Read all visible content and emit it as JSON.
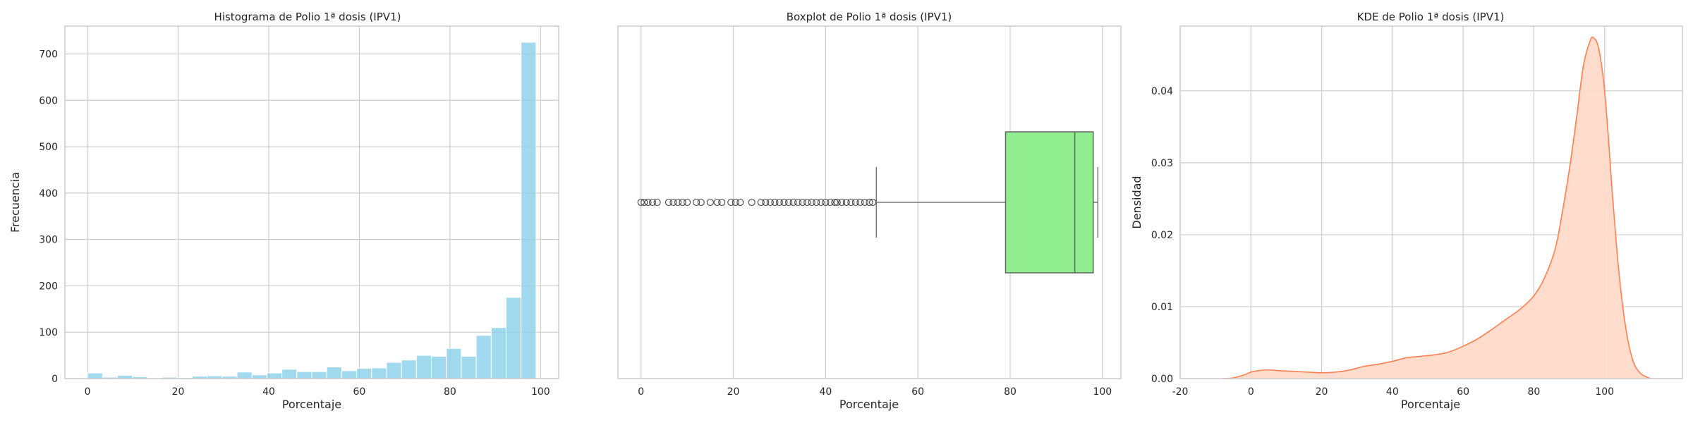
{
  "chart_data": [
    {
      "type": "bar",
      "subtype": "histogram",
      "title": "Histograma de Polio 1ª dosis (IPV1)",
      "xlabel": "Porcentaje",
      "ylabel": "Frecuencia",
      "xlim": [
        -5,
        104
      ],
      "ylim": [
        0,
        760
      ],
      "xticks": [
        0,
        20,
        40,
        60,
        80,
        100
      ],
      "yticks": [
        0,
        100,
        200,
        300,
        400,
        500,
        600,
        700
      ],
      "bin_width": 3.3,
      "bin_start": 0,
      "values": [
        12,
        3,
        7,
        4,
        1,
        3,
        2,
        5,
        6,
        5,
        14,
        8,
        12,
        20,
        15,
        15,
        25,
        17,
        22,
        23,
        35,
        40,
        50,
        48,
        65,
        48,
        93,
        110,
        175,
        725
      ],
      "color": "#87ceeb",
      "grid": true
    },
    {
      "type": "boxplot",
      "title": "Boxplot de Polio 1ª dosis (IPV1)",
      "xlabel": "Porcentaje",
      "xlim": [
        -5,
        104
      ],
      "xticks": [
        0,
        20,
        40,
        60,
        80,
        100
      ],
      "stats": {
        "whisker_low": 51,
        "q1": 79,
        "median": 94,
        "q3": 98,
        "whisker_high": 99
      },
      "outliers": [
        0,
        0.7,
        1.5,
        2.5,
        3.5,
        6,
        7,
        8,
        9,
        10,
        12,
        13,
        15,
        16.5,
        17.5,
        19.5,
        20.5,
        21.5,
        24,
        26,
        27,
        28,
        29,
        30,
        31,
        32,
        33,
        34,
        35,
        36,
        37,
        38,
        39,
        40,
        41,
        42,
        42.5,
        43.5,
        44.5,
        45.5,
        46.5,
        47.5,
        48.5,
        49.5,
        50.2
      ],
      "color": "#90ee90",
      "grid": true
    },
    {
      "type": "area",
      "subtype": "kde",
      "title": "KDE de Polio 1ª dosis (IPV1)",
      "xlabel": "Porcentaje",
      "ylabel": "Densidad",
      "xlim": [
        -20,
        122
      ],
      "ylim": [
        0,
        0.049
      ],
      "xticks": [
        -20,
        0,
        20,
        40,
        60,
        80,
        100
      ],
      "yticks": [
        0.0,
        0.01,
        0.02,
        0.03,
        0.04
      ],
      "x": [
        -8,
        -5,
        -2,
        0,
        2,
        5,
        8,
        12,
        16,
        20,
        24,
        28,
        32,
        36,
        40,
        44,
        48,
        52,
        56,
        60,
        64,
        68,
        72,
        76,
        80,
        83,
        86,
        88,
        90,
        92,
        94,
        96,
        97,
        98,
        99,
        100,
        101,
        102,
        104,
        106,
        108,
        110,
        112,
        113
      ],
      "y": [
        0,
        0.0001,
        0.0005,
        0.0009,
        0.0011,
        0.0012,
        0.0011,
        0.001,
        0.0009,
        0.0008,
        0.0009,
        0.0012,
        0.0017,
        0.002,
        0.0024,
        0.0029,
        0.0031,
        0.0033,
        0.0037,
        0.0045,
        0.0055,
        0.0068,
        0.0082,
        0.0096,
        0.0115,
        0.014,
        0.018,
        0.023,
        0.029,
        0.036,
        0.0435,
        0.0471,
        0.0473,
        0.0465,
        0.044,
        0.04,
        0.034,
        0.027,
        0.015,
        0.007,
        0.0025,
        0.0008,
        0.0002,
        0
      ],
      "fill": "#ffdac8",
      "line": "#ff7f50",
      "grid": true
    }
  ]
}
